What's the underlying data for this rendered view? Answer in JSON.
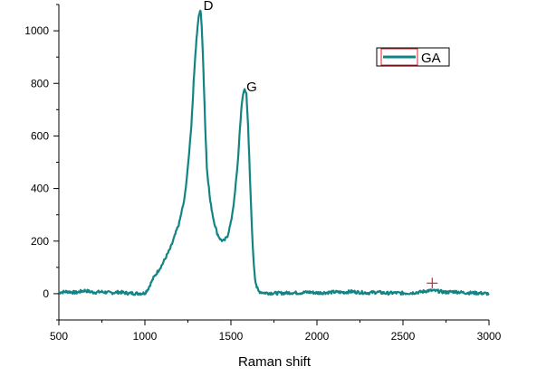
{
  "chart_data": {
    "type": "line",
    "xlabel": "Raman shift",
    "ylabel": "",
    "xlim": [
      500,
      3000
    ],
    "ylim": [
      -100,
      1100
    ],
    "xticks": [
      500,
      1000,
      1500,
      2000,
      2500,
      3000
    ],
    "yticks": [
      0,
      200,
      400,
      600,
      800,
      1000
    ],
    "grid": false,
    "legend_position": "top-right",
    "annotations": [
      {
        "text": "D",
        "x": 1340,
        "y": 1080
      },
      {
        "text": "G",
        "x": 1590,
        "y": 770
      }
    ],
    "marker": {
      "symbol": "+",
      "x": 2670,
      "y": 40,
      "color": "#e0202a"
    },
    "series": [
      {
        "name": "GA",
        "color": "#138484",
        "x": [
          500,
          550,
          600,
          650,
          700,
          750,
          800,
          850,
          900,
          950,
          1000,
          1020,
          1050,
          1100,
          1150,
          1200,
          1230,
          1250,
          1270,
          1280,
          1290,
          1300,
          1310,
          1320,
          1325,
          1330,
          1340,
          1350,
          1360,
          1380,
          1400,
          1420,
          1440,
          1460,
          1480,
          1500,
          1520,
          1540,
          1550,
          1560,
          1570,
          1580,
          1590,
          1600,
          1610,
          1620,
          1630,
          1640,
          1650,
          1660,
          1680,
          1700,
          1750,
          1800,
          1850,
          1900,
          1950,
          2000,
          2050,
          2100,
          2150,
          2200,
          2250,
          2300,
          2350,
          2400,
          2450,
          2500,
          2550,
          2600,
          2650,
          2700,
          2750,
          2800,
          2850,
          2900,
          2950,
          3000
        ],
        "y": [
          5,
          8,
          4,
          12,
          5,
          7,
          3,
          6,
          2,
          1,
          2,
          20,
          60,
          110,
          175,
          270,
          360,
          480,
          640,
          760,
          880,
          970,
          1040,
          1075,
          1070,
          1020,
          860,
          650,
          480,
          350,
          280,
          230,
          205,
          200,
          220,
          270,
          360,
          500,
          600,
          700,
          760,
          775,
          760,
          640,
          450,
          280,
          140,
          60,
          25,
          10,
          5,
          3,
          2,
          2,
          4,
          3,
          6,
          3,
          4,
          6,
          5,
          8,
          5,
          3,
          6,
          2,
          3,
          2,
          3,
          6,
          12,
          10,
          5,
          8,
          4,
          3,
          2,
          0
        ]
      }
    ]
  }
}
